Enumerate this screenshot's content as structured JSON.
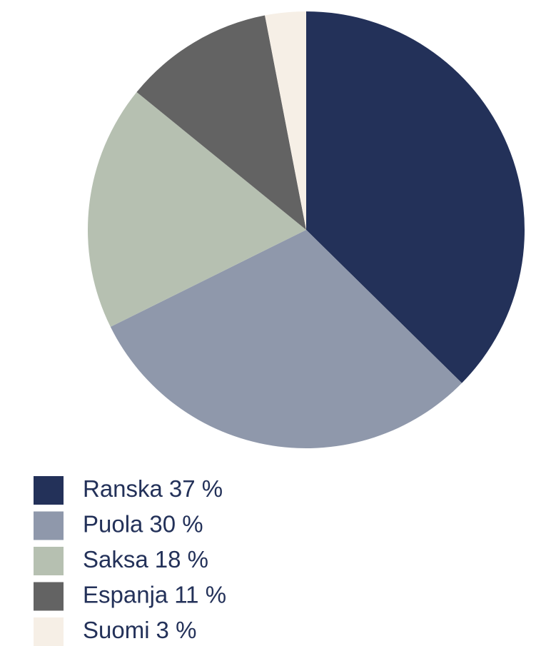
{
  "chart_data": {
    "type": "pie",
    "categories": [
      "Ranska",
      "Puola",
      "Saksa",
      "Espanja",
      "Suomi"
    ],
    "values": [
      37,
      30,
      18,
      11,
      3
    ],
    "value_labels": [
      "37 %",
      "30 %",
      "18 %",
      "11 %",
      "3 %"
    ],
    "colors": [
      "#233159",
      "#8f98ab",
      "#b6c0b1",
      "#636363",
      "#f6efe6"
    ],
    "legend": "bottom"
  }
}
